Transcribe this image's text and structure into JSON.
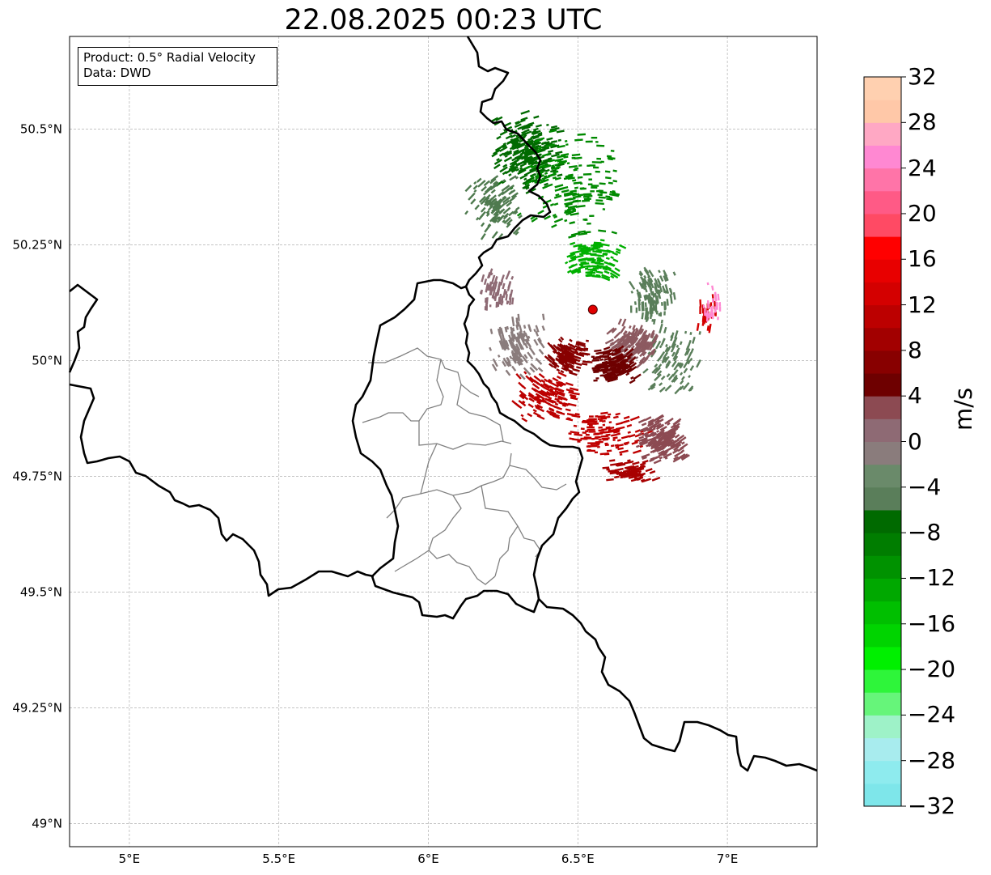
{
  "title": "22.08.2025 00:23 UTC",
  "info_box": {
    "product": "Product: 0.5° Radial Velocity",
    "data": "Data: DWD"
  },
  "map": {
    "extent": {
      "lon_min": 4.8,
      "lon_max": 7.3,
      "lat_min": 48.95,
      "lat_max": 50.7
    },
    "lat_ticks": [
      {
        "value": 50.5,
        "label": "50.5°N"
      },
      {
        "value": 50.25,
        "label": "50.25°N"
      },
      {
        "value": 50.0,
        "label": "50°N"
      },
      {
        "value": 49.75,
        "label": "49.75°N"
      },
      {
        "value": 49.5,
        "label": "49.5°N"
      },
      {
        "value": 49.25,
        "label": "49.25°N"
      },
      {
        "value": 49.0,
        "label": "49°N"
      }
    ],
    "lon_ticks": [
      {
        "value": 5.0,
        "label": "5°E"
      },
      {
        "value": 5.5,
        "label": "5.5°E"
      },
      {
        "value": 6.0,
        "label": "6°E"
      },
      {
        "value": 6.5,
        "label": "6.5°E"
      },
      {
        "value": 7.0,
        "label": "7°E"
      }
    ],
    "radar_site": {
      "lon": 6.55,
      "lat": 50.11,
      "color": "#e00000"
    },
    "grid": true,
    "colors": {
      "border": "#000000",
      "admin_border": "#808080",
      "grid": "#b0b0b0"
    }
  },
  "colorbar": {
    "unit": "m/s",
    "min": -32,
    "max": 32,
    "step": 2,
    "tick_labels": [
      "32",
      "28",
      "24",
      "20",
      "16",
      "12",
      "8",
      "4",
      "0",
      "−4",
      "−8",
      "−12",
      "−16",
      "−20",
      "−24",
      "−28",
      "−32"
    ],
    "colors_low_to_high": [
      "#7ee6ea",
      "#8eebee",
      "#a8ecee",
      "#9ef2c8",
      "#66f57a",
      "#2ef53a",
      "#00f000",
      "#00d400",
      "#00bf00",
      "#00a800",
      "#009200",
      "#007d00",
      "#006a00",
      "#5a7e5a",
      "#6a8a6a",
      "#8a7c7c",
      "#8e6a74",
      "#8c4a52",
      "#6e0000",
      "#880000",
      "#a20000",
      "#bc0000",
      "#d40000",
      "#e80000",
      "#ff0000",
      "#ff4a64",
      "#ff5a86",
      "#ff74a8",
      "#ff88d2",
      "#ffa8c4",
      "#ffc8a8",
      "#ffd0b0"
    ]
  },
  "velocity_regions": [
    {
      "lon": 6.33,
      "lat": 50.45,
      "count": 260,
      "spread_lon": 0.12,
      "spread_lat": 0.09,
      "color": "#006a00"
    },
    {
      "lon": 6.48,
      "lat": 50.38,
      "count": 180,
      "spread_lon": 0.18,
      "spread_lat": 0.12,
      "color": "#008a00"
    },
    {
      "lon": 6.22,
      "lat": 50.33,
      "count": 110,
      "spread_lon": 0.1,
      "spread_lat": 0.08,
      "color": "#4e7a4e"
    },
    {
      "lon": 6.55,
      "lat": 50.22,
      "count": 120,
      "spread_lon": 0.12,
      "spread_lat": 0.05,
      "color": "#00b000"
    },
    {
      "lon": 6.75,
      "lat": 50.14,
      "count": 120,
      "spread_lon": 0.08,
      "spread_lat": 0.06,
      "color": "#5a7e5a"
    },
    {
      "lon": 6.82,
      "lat": 50.0,
      "count": 90,
      "spread_lon": 0.1,
      "spread_lat": 0.08,
      "color": "#5a7e5a"
    },
    {
      "lon": 6.68,
      "lat": 50.04,
      "count": 170,
      "spread_lon": 0.09,
      "spread_lat": 0.05,
      "color": "#8c5a60"
    },
    {
      "lon": 6.62,
      "lat": 49.99,
      "count": 180,
      "spread_lon": 0.08,
      "spread_lat": 0.04,
      "color": "#6e0000"
    },
    {
      "lon": 6.47,
      "lat": 50.01,
      "count": 140,
      "spread_lon": 0.07,
      "spread_lat": 0.04,
      "color": "#880000"
    },
    {
      "lon": 6.3,
      "lat": 50.03,
      "count": 130,
      "spread_lon": 0.1,
      "spread_lat": 0.07,
      "color": "#8a7c7c"
    },
    {
      "lon": 6.4,
      "lat": 49.92,
      "count": 130,
      "spread_lon": 0.12,
      "spread_lat": 0.06,
      "color": "#bc0000"
    },
    {
      "lon": 6.6,
      "lat": 49.84,
      "count": 120,
      "spread_lon": 0.14,
      "spread_lat": 0.05,
      "color": "#c00000"
    },
    {
      "lon": 6.78,
      "lat": 49.83,
      "count": 200,
      "spread_lon": 0.09,
      "spread_lat": 0.05,
      "color": "#8c4a52"
    },
    {
      "lon": 6.68,
      "lat": 49.76,
      "count": 80,
      "spread_lon": 0.1,
      "spread_lat": 0.03,
      "color": "#a80000"
    },
    {
      "lon": 6.23,
      "lat": 50.15,
      "count": 60,
      "spread_lon": 0.06,
      "spread_lat": 0.05,
      "color": "#8e6a74"
    },
    {
      "lon": 6.93,
      "lat": 50.1,
      "count": 30,
      "spread_lon": 0.04,
      "spread_lat": 0.04,
      "color": "#d40000"
    },
    {
      "lon": 6.95,
      "lat": 50.12,
      "count": 25,
      "spread_lon": 0.04,
      "spread_lat": 0.05,
      "color": "#ff88d2"
    }
  ]
}
